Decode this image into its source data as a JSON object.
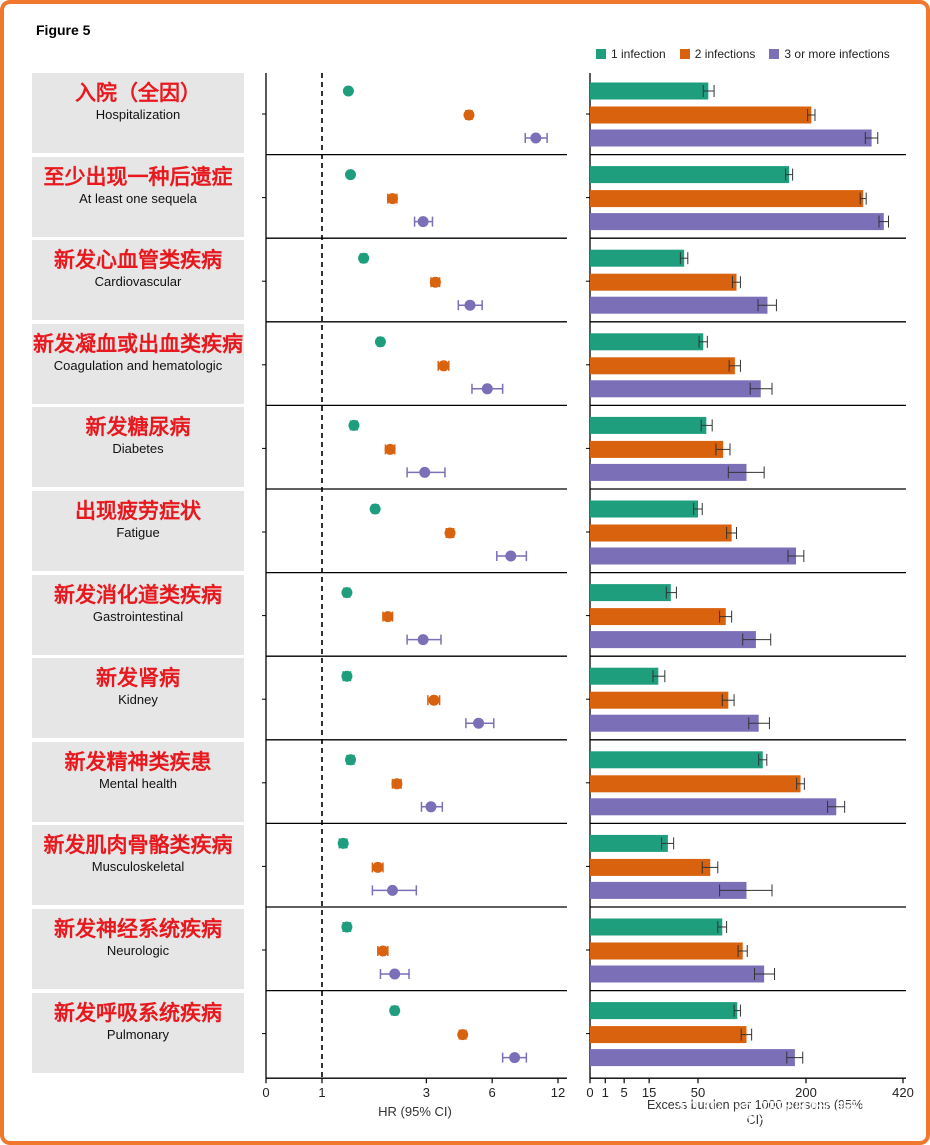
{
  "figure_title": "Figure 5",
  "watermark": "知乎 @珂姆咖喱棒",
  "colors": {
    "one": "#1e9e7d",
    "two": "#d8620e",
    "three": "#7b6fb8",
    "frame": "#f0782d",
    "label_red": "#e8191e",
    "box_bg": "#e6e6e6"
  },
  "legend": [
    {
      "label": "1 infection",
      "color": "#1e9e7d"
    },
    {
      "label": "2 infections",
      "color": "#d8620e"
    },
    {
      "label": "3 or more infections",
      "color": "#7b6fb8"
    }
  ],
  "categories": [
    {
      "cn": "入院（全因）",
      "en": "Hospitalization"
    },
    {
      "cn": "至少出现一种后遗症",
      "en": "At least one sequela"
    },
    {
      "cn": "新发心血管类疾病",
      "en": "Cardiovascular"
    },
    {
      "cn": "新发凝血或出血类疾病",
      "en": "Coagulation and hematologic"
    },
    {
      "cn": "新发糖尿病",
      "en": "Diabetes"
    },
    {
      "cn": "出现疲劳症状",
      "en": "Fatigue"
    },
    {
      "cn": "新发消化道类疾病",
      "en": "Gastrointestinal"
    },
    {
      "cn": "新发肾病",
      "en": "Kidney"
    },
    {
      "cn": "新发精神类疾患",
      "en": "Mental health"
    },
    {
      "cn": "新发肌肉骨骼类疾病",
      "en": "Musculoskeletal"
    },
    {
      "cn": "新发神经系统疾病",
      "en": "Neurologic"
    },
    {
      "cn": "新发呼吸系统疾病",
      "en": "Pulmonary"
    }
  ],
  "chart_data": [
    {
      "type": "scatter",
      "title": "",
      "xlabel": "HR (95% CI)",
      "x_scale": "log",
      "xlim": [
        0,
        12
      ],
      "x_ticks": [
        "0",
        "1",
        "3",
        "6",
        "12"
      ],
      "reference_line": 1,
      "series": [
        {
          "name": "1 infection",
          "values": [
            1.32,
            1.35,
            1.55,
            1.85,
            1.4,
            1.75,
            1.3,
            1.3,
            1.35,
            1.25,
            1.3,
            2.15
          ],
          "ci": [
            [
              1.3,
              1.34
            ],
            [
              1.33,
              1.37
            ],
            [
              1.5,
              1.6
            ],
            [
              1.8,
              1.9
            ],
            [
              1.35,
              1.45
            ],
            [
              1.7,
              1.8
            ],
            [
              1.26,
              1.34
            ],
            [
              1.25,
              1.35
            ],
            [
              1.3,
              1.4
            ],
            [
              1.2,
              1.3
            ],
            [
              1.25,
              1.35
            ],
            [
              2.08,
              2.22
            ]
          ]
        },
        {
          "name": "2 infections",
          "values": [
            4.7,
            2.1,
            3.3,
            3.6,
            2.05,
            3.85,
            2.0,
            3.25,
            2.2,
            1.8,
            1.9,
            4.4
          ],
          "ci": [
            [
              4.55,
              4.85
            ],
            [
              2.0,
              2.2
            ],
            [
              3.15,
              3.45
            ],
            [
              3.4,
              3.8
            ],
            [
              1.95,
              2.15
            ],
            [
              3.7,
              4.0
            ],
            [
              1.9,
              2.1
            ],
            [
              3.05,
              3.45
            ],
            [
              2.1,
              2.3
            ],
            [
              1.7,
              1.9
            ],
            [
              1.8,
              2.0
            ],
            [
              4.25,
              4.55
            ]
          ]
        },
        {
          "name": "3 or more infections",
          "values": [
            9.5,
            2.9,
            4.75,
            5.7,
            2.95,
            7.3,
            2.9,
            5.2,
            3.15,
            2.1,
            2.15,
            7.6
          ],
          "ci": [
            [
              8.5,
              10.7
            ],
            [
              2.65,
              3.2
            ],
            [
              4.2,
              5.4
            ],
            [
              4.85,
              6.7
            ],
            [
              2.45,
              3.65
            ],
            [
              6.3,
              8.6
            ],
            [
              2.45,
              3.5
            ],
            [
              4.55,
              6.1
            ],
            [
              2.85,
              3.55
            ],
            [
              1.7,
              2.7
            ],
            [
              1.85,
              2.5
            ],
            [
              6.7,
              8.6
            ]
          ]
        }
      ]
    },
    {
      "type": "bar",
      "title": "",
      "xlabel": "Excess burden per 1000 persons (95% CI)",
      "x_scale": "sqrt",
      "xlim": [
        0,
        420
      ],
      "x_ticks": [
        "0",
        "1",
        "5",
        "15",
        "50",
        "200",
        "420"
      ],
      "series": [
        {
          "name": "1 infection",
          "values": [
            60,
            170,
            38,
            55,
            58,
            50,
            28,
            20,
            128,
            26,
            75,
            93
          ],
          "ci": [
            [
              55,
              66
            ],
            [
              164,
              176
            ],
            [
              35,
              41
            ],
            [
              51,
              59
            ],
            [
              53,
              64
            ],
            [
              46,
              54
            ],
            [
              25,
              32
            ],
            [
              17,
              24
            ],
            [
              122,
              134
            ],
            [
              22,
              30
            ],
            [
              70,
              80
            ],
            [
              89,
              97
            ]
          ]
        },
        {
          "name": "2 infections",
          "values": [
            210,
            320,
            92,
            90,
            76,
            86,
            79,
            82,
            190,
            62,
            100,
            105
          ],
          "ci": [
            [
              203,
              217
            ],
            [
              313,
              327
            ],
            [
              87,
              97
            ],
            [
              83,
              97
            ],
            [
              68,
              84
            ],
            [
              80,
              92
            ],
            [
              72,
              86
            ],
            [
              75,
              89
            ],
            [
              183,
              197
            ],
            [
              54,
              70
            ],
            [
              94,
              106
            ],
            [
              98,
              112
            ]
          ]
        },
        {
          "name": "3 or more infections",
          "values": [
            340,
            370,
            135,
            125,
            105,
            182,
            118,
            122,
            260,
            105,
            130,
            180
          ],
          "ci": [
            [
              325,
              355
            ],
            [
              358,
              382
            ],
            [
              121,
              149
            ],
            [
              110,
              142
            ],
            [
              82,
              130
            ],
            [
              168,
              196
            ],
            [
              100,
              140
            ],
            [
              108,
              138
            ],
            [
              242,
              278
            ],
            [
              72,
              142
            ],
            [
              116,
              146
            ],
            [
              166,
              194
            ]
          ]
        }
      ]
    }
  ]
}
